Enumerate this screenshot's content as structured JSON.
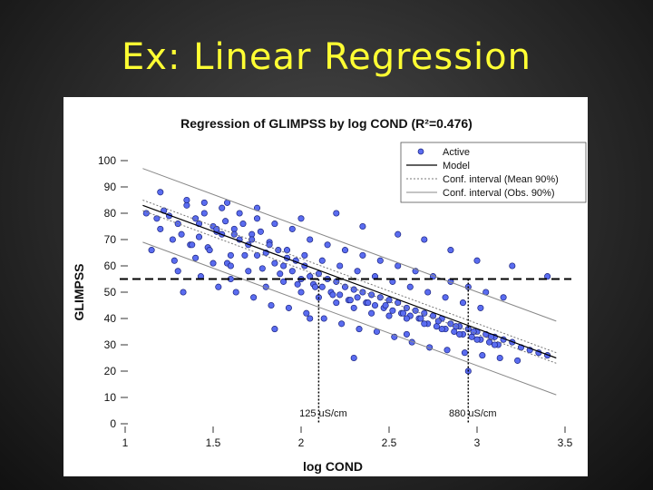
{
  "slide": {
    "title": "Ex:  Linear Regression"
  },
  "chart_data": {
    "type": "scatter",
    "title": "Regression of GLIMPSS by log COND (R²=0.476)",
    "xlabel": "log COND",
    "ylabel": "GLIMPSS",
    "xlim": [
      1,
      3.5
    ],
    "ylim": [
      0,
      100
    ],
    "x_ticks": [
      "1",
      "1.5",
      "2",
      "2.5",
      "3",
      "3.5"
    ],
    "y_ticks": [
      "0",
      "10",
      "20",
      "30",
      "40",
      "50",
      "60",
      "70",
      "80",
      "90",
      "100"
    ],
    "grid": false,
    "legend_position": "top-right",
    "legend": {
      "active": "Active",
      "model": "Model",
      "conf_mean": "Conf. interval (Mean 90%)",
      "conf_obs": "Conf. interval (Obs. 90%)"
    },
    "model_line": {
      "x": [
        1.1,
        3.45
      ],
      "y": [
        83,
        25
      ]
    },
    "conf_mean_upper": {
      "x": [
        1.1,
        3.45
      ],
      "y": [
        85,
        27
      ]
    },
    "conf_mean_lower": {
      "x": [
        1.1,
        3.45
      ],
      "y": [
        81,
        23
      ]
    },
    "obs_upper": {
      "x": [
        1.1,
        3.45
      ],
      "y": [
        97,
        39
      ]
    },
    "obs_lower": {
      "x": [
        1.1,
        3.45
      ],
      "y": [
        69,
        11
      ]
    },
    "threshold_line": {
      "y": 55
    },
    "annotations": [
      {
        "text": "125 uS/cm",
        "x": 2.1
      },
      {
        "text": "880 uS/cm",
        "x": 2.95
      }
    ],
    "series": [
      {
        "name": "Active",
        "x": [
          1.15,
          1.18,
          1.2,
          1.22,
          1.25,
          1.27,
          1.3,
          1.32,
          1.35,
          1.37,
          1.4,
          1.42,
          1.45,
          1.47,
          1.5,
          1.52,
          1.55,
          1.57,
          1.6,
          1.62,
          1.65,
          1.67,
          1.7,
          1.72,
          1.75,
          1.77,
          1.8,
          1.82,
          1.85,
          1.87,
          1.9,
          1.92,
          1.95,
          1.97,
          2.0,
          2.02,
          2.05,
          2.07,
          2.1,
          2.12,
          2.15,
          2.17,
          2.2,
          2.22,
          2.25,
          2.27,
          2.3,
          2.32,
          2.35,
          2.37,
          2.4,
          2.42,
          2.45,
          2.47,
          2.5,
          2.52,
          2.55,
          2.57,
          2.6,
          2.62,
          2.65,
          2.67,
          2.7,
          2.72,
          2.75,
          2.77,
          2.8,
          2.82,
          2.85,
          2.87,
          2.9,
          2.92,
          2.95,
          2.97,
          3.0,
          3.02,
          3.05,
          3.07,
          3.1,
          3.12,
          3.15,
          3.2,
          3.25,
          3.3,
          3.35,
          3.4,
          1.3,
          1.4,
          1.5,
          1.6,
          1.7,
          1.8,
          1.9,
          2.0,
          2.1,
          2.2,
          2.3,
          2.4,
          2.5,
          2.6,
          2.7,
          2.8,
          2.9,
          3.0,
          3.1,
          1.35,
          1.45,
          1.55,
          1.65,
          1.75,
          1.85,
          1.95,
          2.05,
          2.15,
          2.25,
          2.35,
          2.45,
          2.55,
          2.65,
          2.75,
          2.85,
          2.95,
          3.05,
          3.15,
          1.28,
          1.38,
          1.48,
          1.58,
          1.68,
          1.78,
          1.88,
          1.98,
          2.08,
          2.18,
          2.28,
          2.38,
          2.48,
          2.58,
          2.68,
          2.78,
          2.88,
          2.98,
          3.08,
          1.42,
          1.52,
          1.62,
          1.72,
          1.82,
          1.92,
          2.02,
          2.12,
          2.22,
          2.32,
          2.42,
          2.52,
          2.62,
          2.72,
          2.82,
          2.92,
          3.02,
          1.33,
          1.43,
          1.53,
          1.63,
          1.73,
          1.83,
          1.93,
          2.03,
          2.13,
          2.23,
          2.33,
          2.43,
          2.53,
          2.63,
          2.73,
          2.83,
          2.93,
          3.03,
          3.13,
          3.23,
          1.12,
          1.2,
          1.58,
          1.75,
          2.0,
          2.2,
          2.35,
          2.55,
          2.7,
          2.85,
          3.0,
          3.2,
          3.4,
          1.6,
          1.85,
          2.05,
          2.3,
          2.6,
          2.95
        ],
        "y": [
          66,
          78,
          74,
          81,
          79,
          70,
          76,
          72,
          83,
          68,
          78,
          71,
          80,
          67,
          75,
          73,
          72,
          77,
          64,
          74,
          70,
          76,
          68,
          72,
          64,
          73,
          65,
          69,
          61,
          66,
          60,
          63,
          58,
          62,
          55,
          60,
          56,
          53,
          57,
          52,
          55,
          50,
          54,
          49,
          52,
          47,
          51,
          48,
          50,
          46,
          49,
          45,
          48,
          44,
          47,
          43,
          46,
          42,
          44,
          41,
          43,
          40,
          42,
          38,
          41,
          37,
          40,
          36,
          38,
          35,
          37,
          34,
          36,
          33,
          35,
          32,
          34,
          31,
          33,
          30,
          32,
          31,
          29,
          28,
          27,
          26,
          58,
          63,
          61,
          55,
          58,
          52,
          54,
          50,
          48,
          46,
          44,
          42,
          41,
          40,
          38,
          36,
          34,
          32,
          30,
          85,
          84,
          82,
          80,
          78,
          76,
          74,
          70,
          68,
          66,
          64,
          62,
          60,
          58,
          56,
          54,
          52,
          50,
          48,
          62,
          68,
          66,
          61,
          64,
          59,
          57,
          53,
          52,
          49,
          47,
          46,
          45,
          42,
          40,
          39,
          37,
          35,
          33,
          76,
          74,
          72,
          70,
          68,
          66,
          64,
          62,
          60,
          58,
          56,
          54,
          52,
          50,
          48,
          46,
          44,
          50,
          56,
          52,
          50,
          48,
          45,
          44,
          42,
          40,
          38,
          36,
          35,
          33,
          31,
          29,
          28,
          27,
          26,
          25,
          24,
          80,
          88,
          84,
          82,
          78,
          80,
          75,
          72,
          70,
          66,
          62,
          60,
          56,
          60,
          36,
          40,
          25,
          34,
          20
        ]
      }
    ]
  }
}
